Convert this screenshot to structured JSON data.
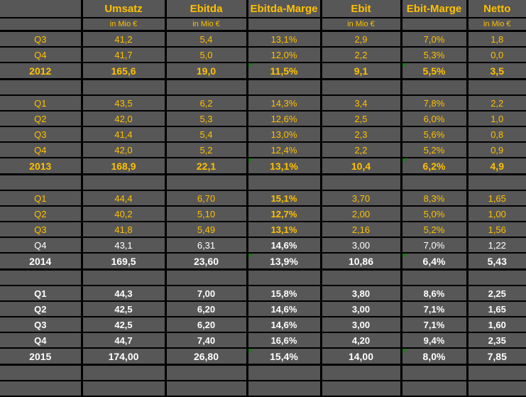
{
  "colors": {
    "cell_background": "#575757",
    "gridline": "#000000",
    "accent_orange": "#FFC000",
    "text_white": "#FFFFFF",
    "error_triangle_green": "#1F7A1F"
  },
  "table": {
    "headers": [
      "",
      "Umsatz",
      "Ebitda",
      "Ebitda-Marge",
      "Ebit",
      "Ebit-Marge",
      "Netto"
    ],
    "units": [
      "",
      "in Mio €",
      "in Mio €",
      "",
      "in Mio €",
      "",
      "in Mio €"
    ],
    "column_keys": [
      "label",
      "umsatz",
      "ebitda",
      "ebitda-marge",
      "ebit",
      "ebit-marge",
      "netto"
    ],
    "rows": [
      {
        "type": "quarter",
        "label": "Q3",
        "color": "orange",
        "cells": [
          "41,2",
          "5,4",
          "13,1%",
          "2,9",
          "7,0%",
          "1,8"
        ],
        "bold_cells": [],
        "triangle_cells": []
      },
      {
        "type": "quarter",
        "label": "Q4",
        "color": "orange",
        "cells": [
          "41,7",
          "5,0",
          "12,0%",
          "2,2",
          "5,3%",
          "0,0"
        ],
        "bold_cells": [],
        "triangle_cells": []
      },
      {
        "type": "year",
        "label": "2012",
        "color": "orange",
        "cells": [
          "165,6",
          "19,0",
          "11,5%",
          "9,1",
          "5,5%",
          "3,5"
        ],
        "bold_cells": [],
        "triangle_cells": [
          2,
          4
        ]
      },
      {
        "type": "blank",
        "label": "",
        "color": "orange",
        "cells": [
          "",
          "",
          "",
          "",
          "",
          ""
        ],
        "bold_cells": [],
        "triangle_cells": []
      },
      {
        "type": "quarter",
        "label": "Q1",
        "color": "orange",
        "cells": [
          "43,5",
          "6,2",
          "14,3%",
          "3,4",
          "7,8%",
          "2,2"
        ],
        "bold_cells": [],
        "triangle_cells": []
      },
      {
        "type": "quarter",
        "label": "Q2",
        "color": "orange",
        "cells": [
          "42,0",
          "5,3",
          "12,6%",
          "2,5",
          "6,0%",
          "1,0"
        ],
        "bold_cells": [],
        "triangle_cells": []
      },
      {
        "type": "quarter",
        "label": "Q3",
        "color": "orange",
        "cells": [
          "41,4",
          "5,4",
          "13,0%",
          "2,3",
          "5,6%",
          "0,8"
        ],
        "bold_cells": [],
        "triangle_cells": []
      },
      {
        "type": "quarter",
        "label": "Q4",
        "color": "orange",
        "cells": [
          "42,0",
          "5,2",
          "12,4%",
          "2,2",
          "5,2%",
          "0,9"
        ],
        "bold_cells": [],
        "triangle_cells": []
      },
      {
        "type": "year",
        "label": "2013",
        "color": "orange",
        "cells": [
          "168,9",
          "22,1",
          "13,1%",
          "10,4",
          "6,2%",
          "4,9"
        ],
        "bold_cells": [],
        "triangle_cells": [
          2,
          4
        ]
      },
      {
        "type": "blank",
        "label": "",
        "color": "orange",
        "cells": [
          "",
          "",
          "",
          "",
          "",
          ""
        ],
        "bold_cells": [],
        "triangle_cells": []
      },
      {
        "type": "quarter",
        "label": "Q1",
        "color": "orange",
        "cells": [
          "44,4",
          "6,70",
          "15,1%",
          "3,70",
          "8,3%",
          "1,65"
        ],
        "bold_cells": [
          2
        ],
        "triangle_cells": []
      },
      {
        "type": "quarter",
        "label": "Q2",
        "color": "orange",
        "cells": [
          "40,2",
          "5,10",
          "12,7%",
          "2,00",
          "5,0%",
          "1,00"
        ],
        "bold_cells": [
          2
        ],
        "triangle_cells": []
      },
      {
        "type": "quarter",
        "label": "Q3",
        "color": "orange",
        "cells": [
          "41,8",
          "5,49",
          "13,1%",
          "2,16",
          "5,2%",
          "1,56"
        ],
        "bold_cells": [
          2
        ],
        "triangle_cells": []
      },
      {
        "type": "quarter",
        "label": "Q4",
        "color": "white",
        "cells": [
          "43,1",
          "6,31",
          "14,6%",
          "3,00",
          "7,0%",
          "1,22"
        ],
        "bold_cells": [
          2
        ],
        "triangle_cells": []
      },
      {
        "type": "year",
        "label": "2014",
        "color": "white",
        "cells": [
          "169,5",
          "23,60",
          "13,9%",
          "10,86",
          "6,4%",
          "5,43"
        ],
        "bold_cells": [],
        "triangle_cells": [
          2,
          4
        ]
      },
      {
        "type": "blank",
        "label": "",
        "color": "orange",
        "cells": [
          "",
          "",
          "",
          "",
          "",
          ""
        ],
        "bold_cells": [],
        "triangle_cells": []
      },
      {
        "type": "quarter",
        "label": "Q1",
        "color": "white",
        "bold": true,
        "cells": [
          "44,3",
          "7,00",
          "15,8%",
          "3,80",
          "8,6%",
          "2,25"
        ],
        "bold_cells": [],
        "triangle_cells": []
      },
      {
        "type": "quarter",
        "label": "Q2",
        "color": "white",
        "bold": true,
        "cells": [
          "42,5",
          "6,20",
          "14,6%",
          "3,00",
          "7,1%",
          "1,65"
        ],
        "bold_cells": [],
        "triangle_cells": []
      },
      {
        "type": "quarter",
        "label": "Q3",
        "color": "white",
        "bold": true,
        "cells": [
          "42,5",
          "6,20",
          "14,6%",
          "3,00",
          "7,1%",
          "1,60"
        ],
        "bold_cells": [],
        "triangle_cells": []
      },
      {
        "type": "quarter",
        "label": "Q4",
        "color": "white",
        "bold": true,
        "cells": [
          "44,7",
          "7,40",
          "16,6%",
          "4,20",
          "9,4%",
          "2,35"
        ],
        "bold_cells": [],
        "triangle_cells": []
      },
      {
        "type": "year",
        "label": "2015",
        "color": "white",
        "cells": [
          "174,00",
          "26,80",
          "15,4%",
          "14,00",
          "8,0%",
          "7,85"
        ],
        "bold_cells": [],
        "triangle_cells": [
          2,
          4
        ]
      },
      {
        "type": "blank",
        "label": "",
        "color": "orange",
        "cells": [
          "",
          "",
          "",
          "",
          "",
          ""
        ],
        "bold_cells": [],
        "triangle_cells": []
      },
      {
        "type": "blank",
        "label": "",
        "color": "orange",
        "cells": [
          "",
          "",
          "",
          "",
          "",
          ""
        ],
        "bold_cells": [],
        "triangle_cells": []
      }
    ]
  }
}
